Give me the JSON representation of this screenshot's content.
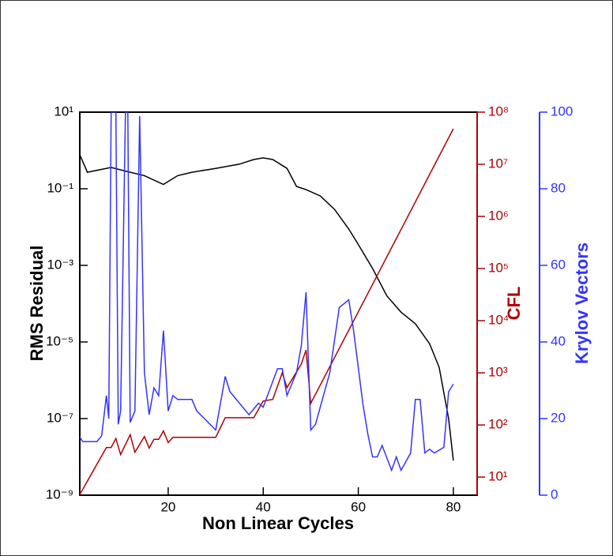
{
  "chart_data": {
    "type": "line",
    "xlabel": "Non Linear Cycles",
    "ylabel": "RMS Residual",
    "y2label": "CFL",
    "y3label": "Krylov Vectors",
    "xlim": [
      1.4,
      85
    ],
    "xticks": [
      20,
      40,
      60,
      80
    ],
    "ylim": [
      1e-09,
      10
    ],
    "ylog": true,
    "yticks": [
      {
        "value": 1e-09,
        "label": "10⁻⁹"
      },
      {
        "value": 1e-07,
        "label": "10⁻⁷"
      },
      {
        "value": 1e-05,
        "label": "10⁻⁵"
      },
      {
        "value": 0.001,
        "label": "10⁻³"
      },
      {
        "value": 0.1,
        "label": "10⁻¹"
      },
      {
        "value": 10,
        "label": "10¹"
      }
    ],
    "y2lim": [
      4.5,
      100000000.0
    ],
    "y2log": true,
    "y2color": "#b00000",
    "y2ticks": [
      {
        "value": 10,
        "label": "10¹"
      },
      {
        "value": 100,
        "label": "10²"
      },
      {
        "value": 1000,
        "label": "10³"
      },
      {
        "value": 10000,
        "label": "10⁴"
      },
      {
        "value": 100000,
        "label": "10⁵"
      },
      {
        "value": 1000000,
        "label": "10⁶"
      },
      {
        "value": 10000000,
        "label": "10⁷"
      },
      {
        "value": 100000000,
        "label": "10⁸"
      }
    ],
    "y3lim": [
      0,
      100
    ],
    "y3color": "#3333ff",
    "y3ticks": [
      0,
      20,
      40,
      60,
      80,
      100
    ],
    "series": [
      {
        "name": "RMS Residual",
        "color": "#000000",
        "axis": "y",
        "x": [
          1,
          3,
          8,
          12,
          15,
          19,
          22,
          25,
          30,
          35,
          38,
          40,
          42,
          45,
          47,
          49,
          52,
          55,
          58,
          60,
          63,
          66,
          69,
          72,
          75,
          77,
          79,
          80
        ],
        "values": [
          1.0,
          0.27,
          0.36,
          0.27,
          0.22,
          0.13,
          0.22,
          0.27,
          0.34,
          0.44,
          0.58,
          0.64,
          0.58,
          0.34,
          0.115,
          0.095,
          0.065,
          0.029,
          0.0089,
          0.0035,
          0.00083,
          0.00016,
          6e-05,
          3e-05,
          9e-06,
          2.2e-06,
          1e-07,
          8e-09
        ]
      },
      {
        "name": "CFL",
        "color": "#b00000",
        "axis": "y2",
        "x": [
          1,
          1.5,
          7,
          8,
          9,
          10,
          12,
          13,
          15,
          16,
          17,
          18,
          19,
          20,
          21,
          30,
          32,
          38,
          40,
          42,
          44,
          45,
          48,
          49,
          50,
          80
        ],
        "values": [
          8,
          4.8,
          37,
          37,
          55,
          27,
          65,
          30,
          60,
          36,
          53,
          53,
          77,
          46,
          58,
          58,
          138,
          138,
          288,
          310,
          1000,
          520,
          1470,
          2740,
          260,
          48000000
        ]
      },
      {
        "name": "Krylov Vectors",
        "color": "#3333ff",
        "axis": "y3",
        "x": [
          1,
          2,
          5,
          6,
          7,
          7.5,
          8,
          9,
          9.5,
          10,
          11,
          11.5,
          12,
          13,
          14,
          15,
          16,
          17,
          18,
          19,
          20,
          21,
          22,
          25,
          26,
          30,
          32,
          33,
          37,
          39,
          40,
          43,
          44,
          45,
          47,
          48,
          49,
          50,
          51,
          54,
          56,
          58,
          59,
          61,
          62,
          63,
          64,
          65,
          67,
          68,
          69,
          71,
          72,
          73,
          74,
          75,
          76,
          78,
          79,
          80
        ],
        "values": [
          16,
          14,
          14,
          15.5,
          26,
          20,
          100,
          100,
          18.5,
          22,
          100,
          100,
          19,
          22,
          99,
          32,
          21,
          28,
          26,
          43,
          22,
          26,
          25,
          25,
          22,
          17,
          31,
          27,
          21,
          24,
          23,
          33,
          33,
          26,
          32,
          39,
          53,
          17,
          18.5,
          32,
          49,
          51,
          43,
          23.5,
          16,
          10,
          10,
          13,
          6.5,
          10,
          6.5,
          11,
          25,
          25,
          11,
          12,
          11,
          12.5,
          27,
          29
        ]
      }
    ]
  }
}
